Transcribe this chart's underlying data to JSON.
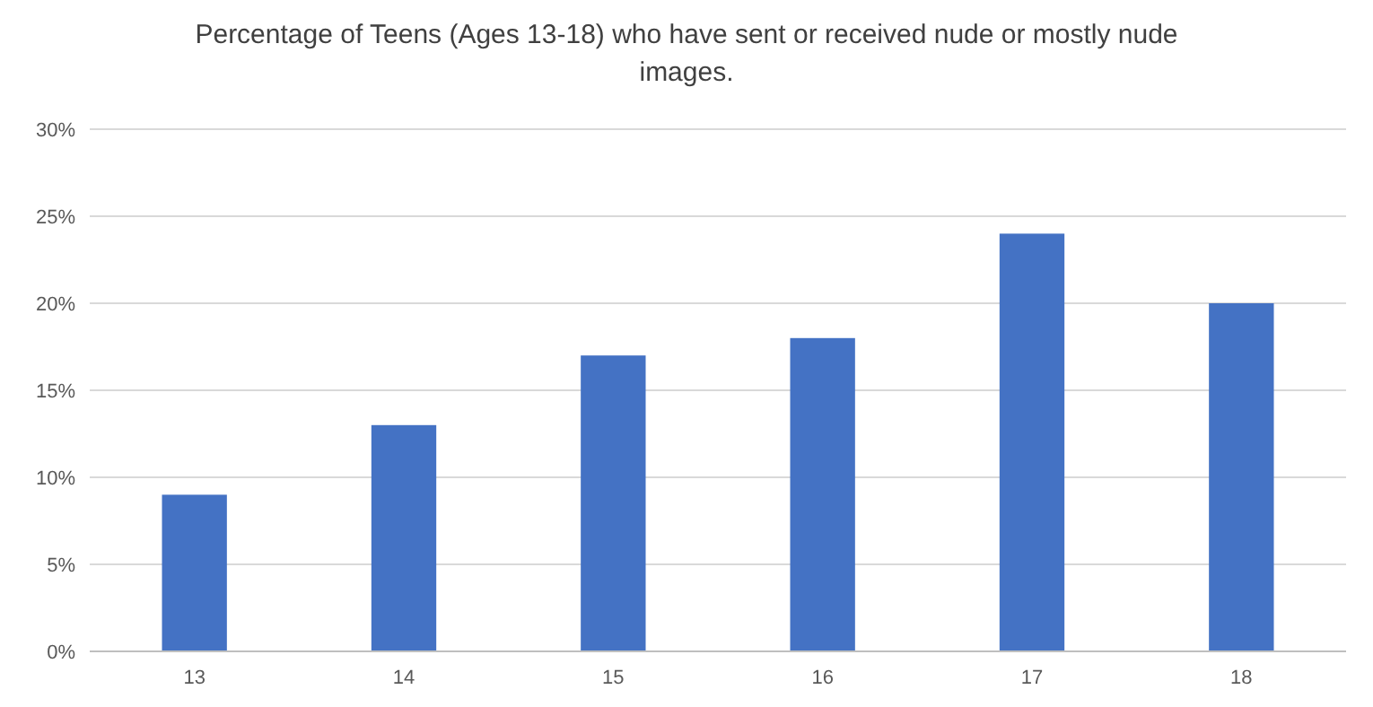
{
  "chart_data": {
    "type": "bar",
    "title": "Percentage of Teens (Ages 13-18) who have sent or received nude or mostly nude images.",
    "categories": [
      "13",
      "14",
      "15",
      "16",
      "17",
      "18"
    ],
    "values": [
      9,
      13,
      17,
      18,
      24,
      20
    ],
    "color": "#4472c4",
    "ylim": [
      0,
      30
    ],
    "yticks": [
      {
        "value": 0,
        "label": "0%"
      },
      {
        "value": 5,
        "label": "5%"
      },
      {
        "value": 10,
        "label": "10%"
      },
      {
        "value": 15,
        "label": "15%"
      },
      {
        "value": 20,
        "label": "20%"
      },
      {
        "value": 25,
        "label": "25%"
      },
      {
        "value": 30,
        "label": "30%"
      }
    ],
    "grid": "y"
  }
}
